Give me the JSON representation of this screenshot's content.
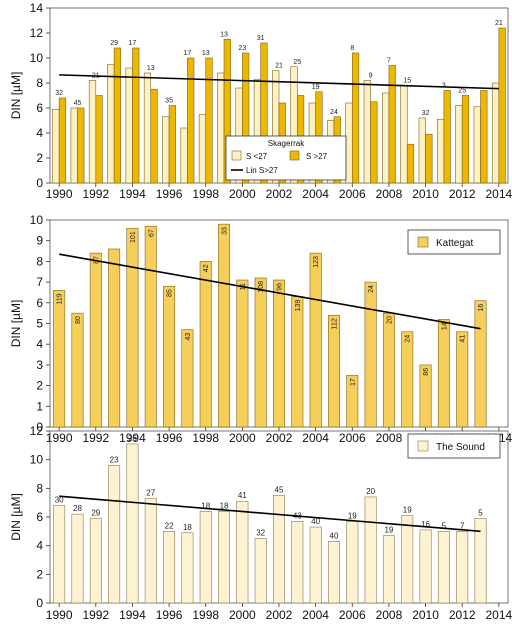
{
  "chart_data": [
    {
      "type": "bar",
      "ylabel": "DIN [µM]",
      "ylim": [
        0,
        14
      ],
      "yticks": [
        0,
        2,
        4,
        6,
        8,
        10,
        12,
        14
      ],
      "x_ticks": [
        1990,
        1992,
        1994,
        1996,
        1998,
        2000,
        2002,
        2004,
        2006,
        2008,
        2010,
        2012,
        2014
      ],
      "years": [
        1990,
        1991,
        1992,
        1993,
        1994,
        1995,
        1996,
        1997,
        1998,
        1999,
        2000,
        2001,
        2002,
        2003,
        2004,
        2005,
        2006,
        2007,
        2008,
        2009,
        2010,
        2011,
        2012,
        2013,
        2014
      ],
      "legend": {
        "title": "Skagerrak",
        "entries": [
          "S <27",
          "S >27",
          "Lin S>27"
        ],
        "position": "center-right"
      },
      "colors": {
        "light": "#FDF0C2",
        "dark": "#EDB700",
        "outline": "#7a6420",
        "line": "#000000"
      },
      "series": [
        {
          "name": "S <27",
          "values": [
            5.9,
            6.0,
            8.2,
            9.5,
            9.2,
            8.8,
            5.3,
            4.4,
            5.5,
            8.8,
            7.6,
            8.3,
            9.0,
            9.3,
            6.4,
            5.0,
            6.4,
            8.2,
            7.2,
            7.8,
            5.2,
            5.1,
            6.2,
            6.1,
            8.0
          ],
          "labels": [
            "32",
            "45",
            "",
            "29",
            "",
            "",
            "",
            "3",
            "",
            "",
            "",
            "",
            "",
            "",
            "",
            "",
            "",
            "",
            "",
            "",
            "",
            "",
            "",
            "",
            ""
          ]
        },
        {
          "name": "S >27",
          "values": [
            6.8,
            6.0,
            7.0,
            10.8,
            10.8,
            7.5,
            6.2,
            10.0,
            10.0,
            11.5,
            10.4,
            11.2,
            6.4,
            7.0,
            7.3,
            5.3,
            10.4,
            6.5,
            9.4,
            3.1,
            3.9,
            7.4,
            7.0,
            7.4,
            12.4
          ],
          "labels": [
            "",
            "",
            "",
            "",
            "",
            "",
            "",
            "",
            "",
            "",
            "",
            "",
            "",
            "",
            "",
            "",
            "",
            "",
            "",
            "",
            "",
            "",
            "",
            "",
            ""
          ]
        }
      ],
      "bar_labels": [
        "32",
        "45",
        "21",
        "29",
        "17",
        "13",
        "35",
        "17",
        "13",
        "13",
        "23",
        "31",
        "21",
        "25",
        "19",
        "24",
        "8",
        "9",
        "7",
        "15",
        "32",
        "3",
        "25",
        "",
        "21"
      ],
      "trend": {
        "x": [
          1990,
          2014
        ],
        "y": [
          8.65,
          7.55
        ]
      }
    },
    {
      "type": "bar",
      "ylabel": "DIN [µM]",
      "ylim": [
        0,
        10
      ],
      "yticks": [
        0,
        1,
        2,
        3,
        4,
        5,
        6,
        7,
        8,
        9,
        10
      ],
      "x_ticks": [
        1990,
        1992,
        1994,
        1996,
        1998,
        2000,
        2002,
        2004,
        2006,
        2008,
        2010,
        2012,
        2014
      ],
      "years": [
        1990,
        1991,
        1992,
        1993,
        1994,
        1995,
        1996,
        1997,
        1998,
        1999,
        2000,
        2001,
        2002,
        2003,
        2004,
        2005,
        2006,
        2007,
        2008,
        2009,
        2010,
        2011,
        2012,
        2013
      ],
      "legend": {
        "entries": [
          "Kattegat"
        ],
        "position": "top-right"
      },
      "colors": {
        "fill": "#F6CF5A",
        "outline": "#7a6420",
        "line": "#000000"
      },
      "values": [
        6.6,
        5.5,
        8.4,
        8.6,
        9.6,
        9.7,
        6.8,
        4.7,
        8.0,
        9.8,
        7.1,
        7.2,
        7.1,
        6.3,
        8.4,
        5.4,
        2.5,
        7.0,
        5.5,
        4.6,
        3.0,
        5.2,
        4.6,
        6.1
      ],
      "labels": [
        "119",
        "80",
        "87",
        "",
        "101",
        "67",
        "85",
        "43",
        "42",
        "33",
        "11",
        "108",
        "96",
        "139",
        "123",
        "112",
        "17",
        "24",
        "20",
        "24",
        "86",
        "14",
        "41",
        "16"
      ],
      "trend": {
        "x": [
          1990,
          2013
        ],
        "y": [
          8.35,
          4.75
        ]
      }
    },
    {
      "type": "bar",
      "ylabel": "DIN [µM]",
      "ylim": [
        0,
        12
      ],
      "yticks": [
        0,
        2,
        4,
        6,
        8,
        10,
        12
      ],
      "x_ticks": [
        1990,
        1992,
        1994,
        1996,
        1998,
        2000,
        2002,
        2004,
        2006,
        2008,
        2010,
        2012,
        2014
      ],
      "years": [
        1990,
        1991,
        1992,
        1993,
        1994,
        1995,
        1996,
        1997,
        1998,
        1999,
        2000,
        2001,
        2002,
        2003,
        2004,
        2005,
        2006,
        2007,
        2008,
        2009,
        2010,
        2011,
        2012,
        2013
      ],
      "legend": {
        "entries": [
          "The Sound"
        ],
        "position": "top-right"
      },
      "colors": {
        "fill": "#FDF3D3",
        "outline": "#8a7a50",
        "line": "#000000"
      },
      "values": [
        6.8,
        6.2,
        5.9,
        9.6,
        11.1,
        7.3,
        5.0,
        4.9,
        6.4,
        6.4,
        7.1,
        4.5,
        7.5,
        5.7,
        5.3,
        4.3,
        5.7,
        7.4,
        4.7,
        6.1,
        5.1,
        5.0,
        5.0,
        5.9
      ],
      "labels": [
        "30",
        "28",
        "29",
        "23",
        "26",
        "27",
        "22",
        "18",
        "18",
        "18",
        "41",
        "32",
        "45",
        "43",
        "40",
        "40",
        "19",
        "20",
        "19",
        "19",
        "16",
        "5",
        "7",
        "5"
      ],
      "trend": {
        "x": [
          1990,
          2013
        ],
        "y": [
          7.45,
          5.0
        ]
      }
    }
  ]
}
